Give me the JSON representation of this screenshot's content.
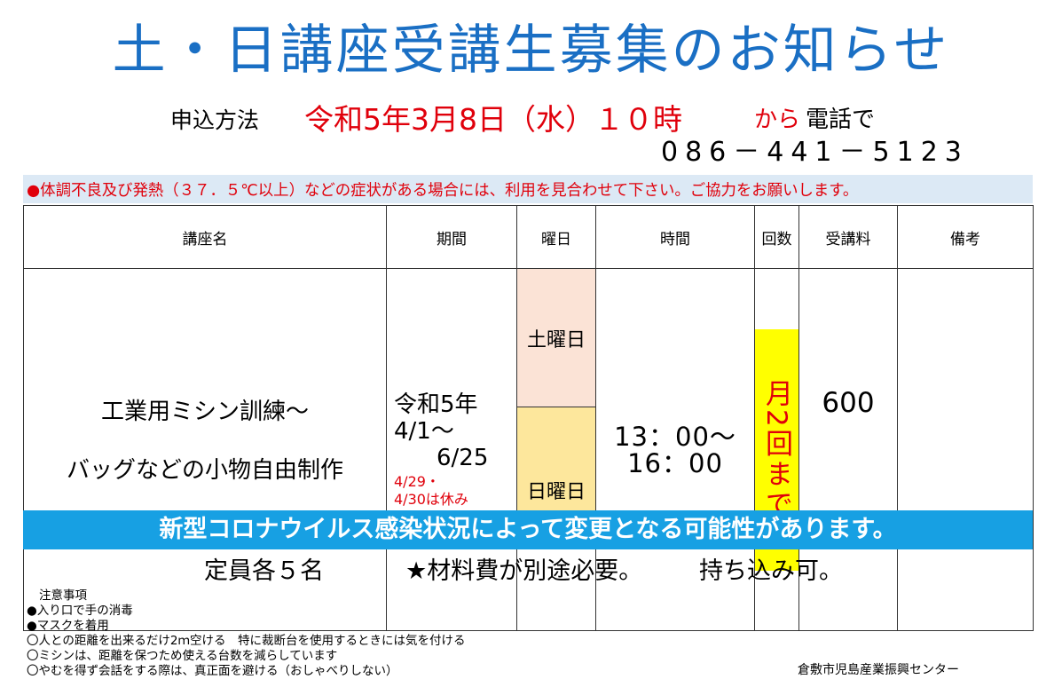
{
  "title": "土・日講座受講生募集のお知らせ",
  "application": {
    "label": "申込方法",
    "date": "令和5年3月8日（水）１０時",
    "kara": "から",
    "method": "電話で",
    "phone": "086－441－5123"
  },
  "warning": "●体調不良及び発熱（３７．５℃以上）などの症状がある場合には、利用を見合わせて下さい。ご協力をお願いします。",
  "table": {
    "headers": [
      "講座名",
      "期間",
      "曜日",
      "時間",
      "回数",
      "受講料",
      "備考"
    ],
    "course_name_lines": [
      "工業用ミシン訓練～",
      "バッグなどの小物自由制作"
    ],
    "period_lines": [
      "令和5年",
      "4/1～",
      "　6/25"
    ],
    "period_note_lines": [
      "4/29・",
      "4/30は休み"
    ],
    "days": [
      "土曜日",
      "日曜日"
    ],
    "time_lines": [
      "13：00～",
      "16：00"
    ],
    "count": "月2回まで",
    "fee": "600",
    "remarks": ""
  },
  "notice": "新型コロナウイルス感染状況によって変更となる可能性があります。",
  "footer": {
    "capacity": "定員各５名",
    "material": "★材料費が別途必要。",
    "bring_in": "持ち込み可。"
  },
  "notes": {
    "title": "注意事項",
    "items": [
      "●入り口で手の消毒",
      "●マスクを着用",
      "〇人との距離を出来るだけ2ｍ空ける　特に裁断台を使用するときには気を付ける",
      "〇ミシンは、距離を保つため使える台数を減らしています",
      "〇やむを得ず会話をする際は、真正面を避ける（おしゃべりしない）"
    ]
  },
  "organization": "倉敷市児島産業振興センター",
  "colors": {
    "title_blue": "#1a6fc4",
    "accent_red": "#e0000b",
    "notice_blue": "#17a0e3",
    "warning_bg": "#dce9f5",
    "saturday_bg": "#fbe3d6",
    "sunday_bg": "#fde79c",
    "count_bg": "#ffff00"
  }
}
